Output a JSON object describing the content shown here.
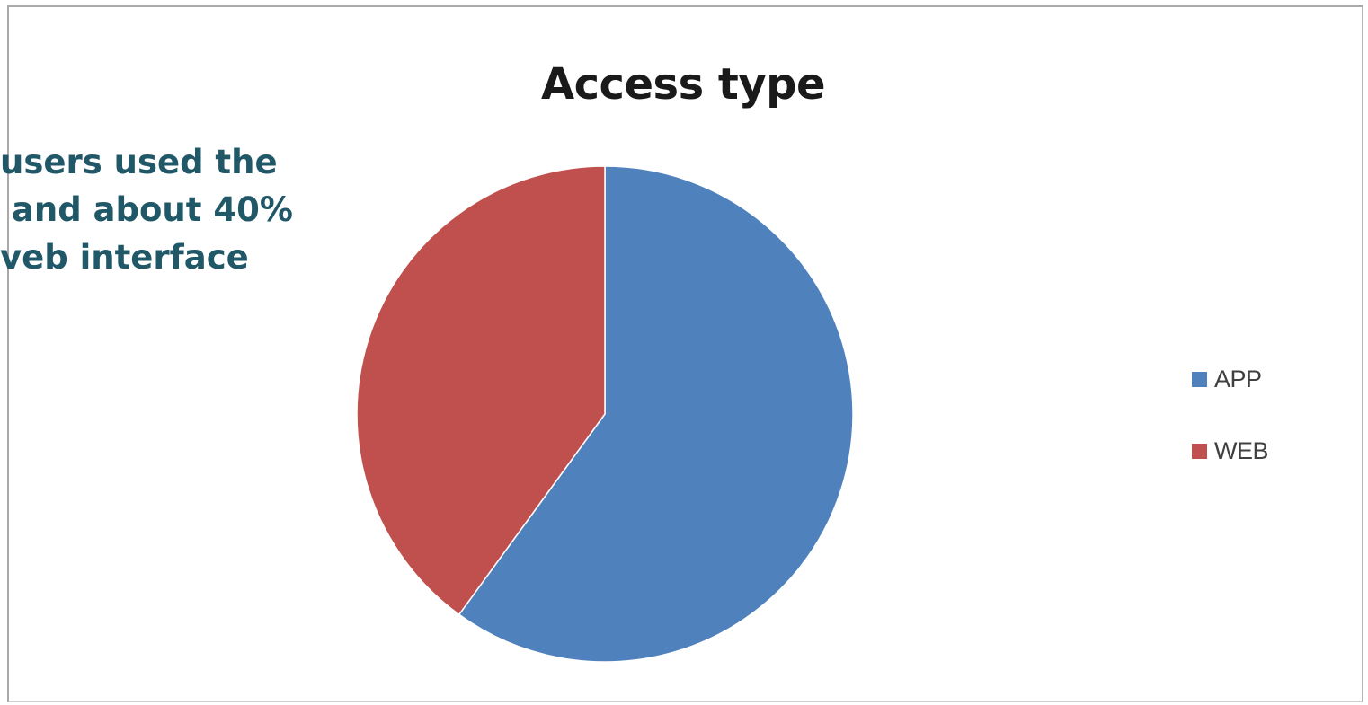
{
  "chart_data": {
    "type": "pie",
    "title": "Access type",
    "categories": [
      "APP",
      "WEB"
    ],
    "values": [
      60,
      40
    ],
    "colors": [
      "#4f81bd",
      "#c0504d"
    ],
    "legend_position": "right",
    "start_angle_deg": 0,
    "direction": "clockwise"
  },
  "overlay_text": {
    "lines": [
      "users used the",
      " and about 40%",
      "veb interface"
    ],
    "color": "#215868"
  }
}
